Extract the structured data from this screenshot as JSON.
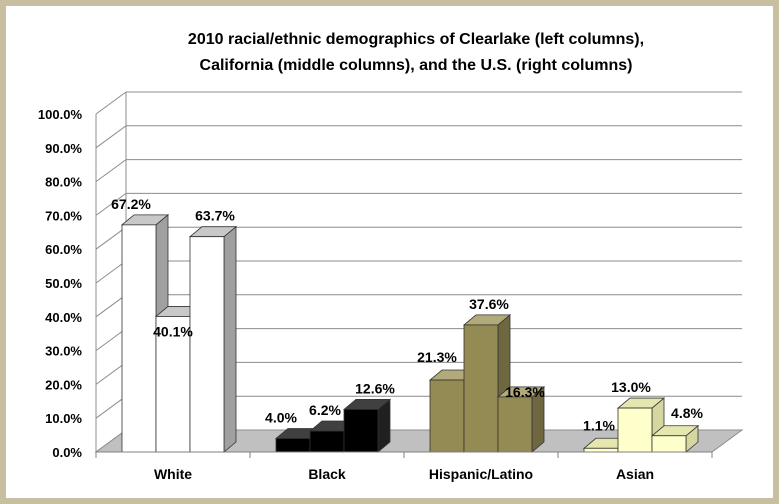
{
  "chart_data": {
    "type": "bar",
    "title_lines": [
      "2010 racial/ethnic demographics of Clearlake (left columns),",
      "California (middle columns), and the U.S. (right columns)"
    ],
    "categories": [
      "White",
      "Black",
      "Hispanic/Latino",
      "Asian"
    ],
    "series": [
      {
        "name": "",
        "values": [
          67.2,
          4.0,
          21.3,
          1.1
        ]
      },
      {
        "name": "",
        "values": [
          40.1,
          6.2,
          37.6,
          13.0
        ]
      },
      {
        "name": "",
        "values": [
          63.7,
          12.6,
          16.3,
          4.8
        ]
      }
    ],
    "data_labels": [
      [
        "67.2%",
        "40.1%",
        "63.7%"
      ],
      [
        "4.0%",
        "6.2%",
        "12.6%"
      ],
      [
        "21.3%",
        "37.6%",
        "16.3%"
      ],
      [
        "1.1%",
        "13.0%",
        "4.8%"
      ]
    ],
    "yticks": [
      0,
      10,
      20,
      30,
      40,
      50,
      60,
      70,
      80,
      90,
      100
    ],
    "ytick_labels": [
      "0.0%",
      "10.0%",
      "20.0%",
      "30.0%",
      "40.0%",
      "50.0%",
      "60.0%",
      "70.0%",
      "80.0%",
      "90.0%",
      "100.0%"
    ],
    "ylim": [
      0,
      100
    ],
    "grid": true,
    "legend": "none",
    "category_colors": {
      "White": {
        "front": "#ffffff",
        "top": "#c8c8c8",
        "side": "#a0a0a0"
      },
      "Black": {
        "front": "#000000",
        "top": "#404040",
        "side": "#202020"
      },
      "Hispanic/Latino": {
        "front": "#948a54",
        "top": "#b3aa7a",
        "side": "#6f6740"
      },
      "Asian": {
        "front": "#ffffcc",
        "top": "#e6e6b0",
        "side": "#d6d6a0"
      }
    },
    "colors": {
      "floor": "#c0c0c0",
      "grid": "#8c8c8c",
      "frame": "#c8bfa0"
    }
  }
}
